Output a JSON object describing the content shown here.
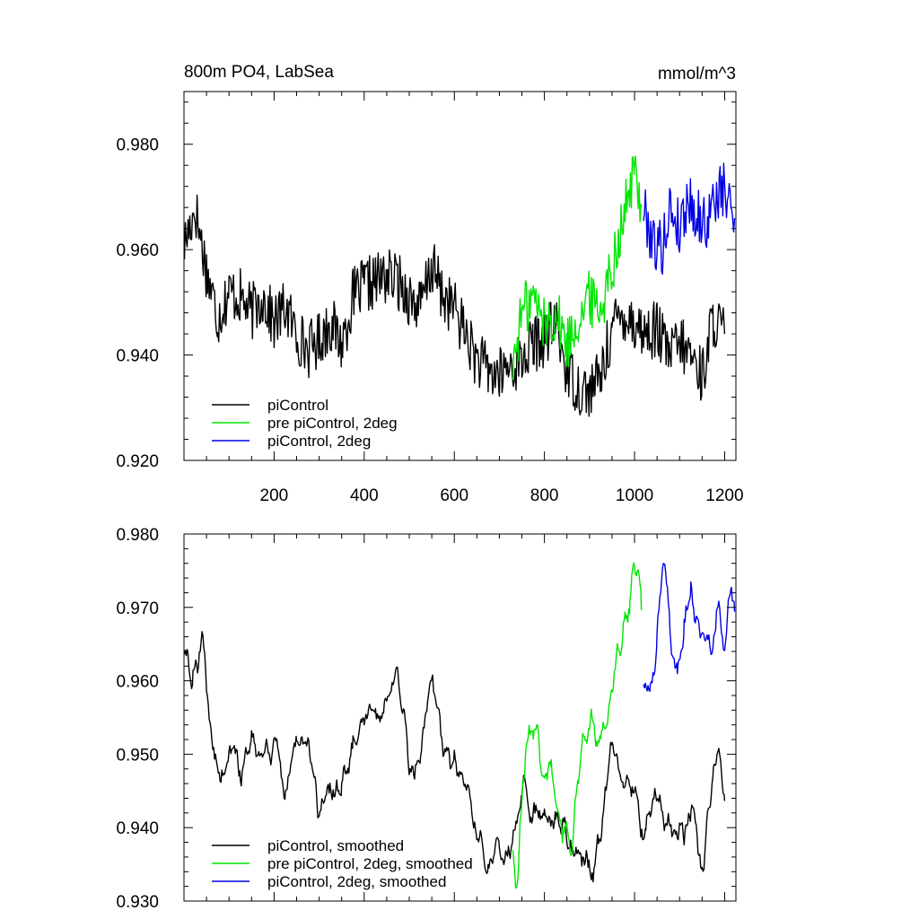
{
  "chart_data": [
    {
      "type": "line",
      "title": "800m PO4, LabSea",
      "units": "mmol/m^3",
      "xlim": [
        0,
        1225
      ],
      "ylim": [
        0.92,
        0.99
      ],
      "xticks": [
        200,
        400,
        600,
        800,
        1000,
        1200
      ],
      "xtick_labels": [
        "200",
        "400",
        "600",
        "800",
        "1000",
        "1200"
      ],
      "yticks": [
        0.92,
        0.94,
        0.96,
        0.98
      ],
      "ytick_labels": [
        "0.920",
        "0.940",
        "0.960",
        "0.980"
      ],
      "legend_position": "bottom-left",
      "grid": false,
      "series": [
        {
          "name": "piControl",
          "color": "#000000",
          "x": [
            1,
            25,
            50,
            75,
            100,
            125,
            150,
            175,
            200,
            225,
            250,
            275,
            300,
            325,
            350,
            375,
            400,
            425,
            450,
            475,
            500,
            525,
            550,
            575,
            600,
            625,
            650,
            675,
            700,
            725,
            750,
            775,
            800,
            825,
            850,
            875,
            900,
            925,
            950,
            975,
            1000,
            1025,
            1050,
            1075,
            1100,
            1125,
            1150,
            1175,
            1200
          ],
          "y": [
            0.961,
            0.968,
            0.956,
            0.947,
            0.952,
            0.951,
            0.948,
            0.951,
            0.946,
            0.949,
            0.944,
            0.941,
            0.943,
            0.946,
            0.942,
            0.951,
            0.953,
            0.954,
            0.955,
            0.954,
            0.951,
            0.949,
            0.957,
            0.951,
            0.949,
            0.944,
            0.939,
            0.937,
            0.936,
            0.938,
            0.939,
            0.942,
            0.943,
            0.946,
            0.937,
            0.934,
            0.933,
            0.936,
            0.945,
            0.948,
            0.946,
            0.944,
            0.945,
            0.94,
            0.942,
            0.94,
            0.936,
            0.947,
            0.944
          ]
        },
        {
          "name": "pre piControl, 2deg",
          "color": "#00e600",
          "x": [
            730,
            750,
            775,
            800,
            825,
            850,
            875,
            900,
            925,
            950,
            975,
            1000,
            1015
          ],
          "y": [
            0.938,
            0.948,
            0.951,
            0.946,
            0.948,
            0.942,
            0.947,
            0.951,
            0.949,
            0.957,
            0.966,
            0.975,
            0.968
          ]
        },
        {
          "name": "piControl, 2deg",
          "color": "#0000e6",
          "x": [
            1020,
            1040,
            1060,
            1080,
            1100,
            1120,
            1140,
            1160,
            1180,
            1200,
            1222
          ],
          "y": [
            0.968,
            0.962,
            0.96,
            0.968,
            0.964,
            0.97,
            0.966,
            0.965,
            0.97,
            0.971,
            0.966
          ]
        }
      ]
    },
    {
      "type": "line",
      "xlim": [
        0,
        1225
      ],
      "ylim": [
        0.93,
        0.98
      ],
      "yticks": [
        0.93,
        0.94,
        0.95,
        0.96,
        0.97,
        0.98
      ],
      "ytick_labels": [
        "0.930",
        "0.940",
        "0.950",
        "0.960",
        "0.970",
        "0.980"
      ],
      "legend_position": "bottom-left",
      "grid": false,
      "series": [
        {
          "name": "piControl, smoothed",
          "color": "#000000",
          "x": [
            1,
            20,
            40,
            60,
            80,
            100,
            125,
            150,
            175,
            200,
            225,
            250,
            275,
            300,
            325,
            350,
            375,
            400,
            425,
            450,
            475,
            500,
            525,
            550,
            575,
            600,
            625,
            650,
            675,
            700,
            725,
            750,
            775,
            800,
            825,
            850,
            875,
            900,
            925,
            950,
            975,
            1000,
            1025,
            1050,
            1075,
            1100,
            1125,
            1150,
            1175,
            1200
          ],
          "y": [
            0.963,
            0.96,
            0.967,
            0.953,
            0.946,
            0.952,
            0.948,
            0.951,
            0.948,
            0.952,
            0.943,
            0.952,
            0.95,
            0.941,
            0.946,
            0.944,
            0.951,
            0.955,
            0.955,
            0.956,
            0.962,
            0.948,
            0.95,
            0.961,
            0.951,
            0.948,
            0.944,
            0.938,
            0.935,
            0.935,
            0.937,
            0.943,
            0.941,
            0.941,
            0.942,
            0.938,
            0.936,
            0.934,
            0.938,
            0.953,
            0.946,
            0.946,
            0.938,
            0.946,
            0.939,
            0.94,
            0.942,
            0.934,
            0.95,
            0.945
          ]
        },
        {
          "name": "pre piControl, 2deg, smoothed",
          "color": "#00e600",
          "x": [
            730,
            740,
            750,
            760,
            775,
            790,
            800,
            815,
            830,
            845,
            860,
            875,
            890,
            900,
            915,
            930,
            945,
            960,
            975,
            990,
            1000,
            1010,
            1015
          ],
          "y": [
            0.941,
            0.932,
            0.945,
            0.952,
            0.954,
            0.95,
            0.946,
            0.95,
            0.941,
            0.94,
            0.936,
            0.948,
            0.952,
            0.955,
            0.953,
            0.952,
            0.958,
            0.962,
            0.966,
            0.972,
            0.974,
            0.977,
            0.966
          ]
        },
        {
          "name": "piControl, 2deg, smoothed",
          "color": "#0000e6",
          "x": [
            1020,
            1035,
            1050,
            1065,
            1080,
            1095,
            1110,
            1125,
            1140,
            1155,
            1170,
            1185,
            1200,
            1215,
            1222
          ],
          "y": [
            0.962,
            0.959,
            0.964,
            0.978,
            0.964,
            0.963,
            0.966,
            0.972,
            0.97,
            0.967,
            0.964,
            0.972,
            0.963,
            0.973,
            0.969
          ]
        }
      ]
    }
  ]
}
